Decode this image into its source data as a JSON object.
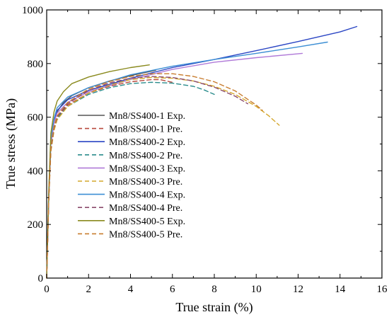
{
  "chart_data": {
    "type": "line",
    "xlabel": "True strain (%)",
    "ylabel": "True stress (MPa)",
    "xlim": [
      0,
      16
    ],
    "ylim": [
      0,
      1000
    ],
    "xticks": [
      0,
      2,
      4,
      6,
      8,
      10,
      12,
      14,
      16
    ],
    "yticks": [
      0,
      200,
      400,
      600,
      800,
      1000
    ],
    "grid": false,
    "legend_position": "center-left",
    "series": [
      {
        "name": "Mn8/SS400-1 Exp.",
        "color": "#555555",
        "style": "solid",
        "x": [
          0,
          0.1,
          0.2,
          0.35,
          0.5,
          0.8,
          1.2,
          2,
          3,
          4,
          5.2
        ],
        "y": [
          0,
          300,
          500,
          580,
          620,
          655,
          680,
          710,
          735,
          755,
          775
        ]
      },
      {
        "name": "Mn8/SS400-1 Pre.",
        "color": "#b84a3e",
        "style": "dashed",
        "x": [
          0,
          0.1,
          0.2,
          0.35,
          0.5,
          1,
          2,
          3,
          4,
          5,
          5.4,
          6
        ],
        "y": [
          0,
          300,
          480,
          560,
          600,
          645,
          690,
          715,
          732,
          740,
          740,
          730
        ]
      },
      {
        "name": "Mn8/SS400-2 Exp.",
        "color": "#2b46c4",
        "style": "solid",
        "x": [
          0,
          0.1,
          0.2,
          0.35,
          0.5,
          1,
          2,
          4,
          6,
          8,
          10,
          12,
          14,
          14.8
        ],
        "y": [
          0,
          320,
          520,
          590,
          625,
          665,
          700,
          745,
          785,
          815,
          848,
          882,
          918,
          938
        ]
      },
      {
        "name": "Mn8/SS400-2 Pre.",
        "color": "#2a8c8c",
        "style": "dashed",
        "x": [
          0,
          0.1,
          0.2,
          0.35,
          0.5,
          1,
          2,
          3,
          4,
          5,
          6,
          7,
          7.5,
          8
        ],
        "y": [
          0,
          300,
          480,
          555,
          595,
          640,
          685,
          710,
          725,
          730,
          727,
          715,
          702,
          685
        ]
      },
      {
        "name": "Mn8/SS400-3 Exp.",
        "color": "#b07ad8",
        "style": "solid",
        "x": [
          0,
          0.1,
          0.2,
          0.35,
          0.5,
          1,
          2,
          4,
          6,
          8,
          10,
          12.2
        ],
        "y": [
          0,
          310,
          500,
          580,
          615,
          655,
          695,
          740,
          778,
          805,
          822,
          838
        ]
      },
      {
        "name": "Mn8/SS400-3 Pre.",
        "color": "#d4a72c",
        "style": "dashed",
        "x": [
          0,
          0.1,
          0.2,
          0.35,
          0.5,
          1,
          2,
          3,
          4,
          5,
          6,
          7,
          8,
          9,
          10,
          10.6,
          11.1
        ],
        "y": [
          0,
          290,
          470,
          550,
          590,
          640,
          690,
          720,
          740,
          748,
          745,
          735,
          715,
          685,
          640,
          605,
          570
        ]
      },
      {
        "name": "Mn8/SS400-4 Exp.",
        "color": "#3d8fd4",
        "style": "solid",
        "x": [
          0,
          0.1,
          0.2,
          0.35,
          0.5,
          1,
          2,
          4,
          6,
          8,
          10,
          12,
          13.4
        ],
        "y": [
          0,
          320,
          520,
          595,
          635,
          675,
          710,
          758,
          790,
          815,
          838,
          862,
          880
        ]
      },
      {
        "name": "Mn8/SS400-4 Pre.",
        "color": "#8a4a6a",
        "style": "dashed",
        "x": [
          0,
          0.1,
          0.2,
          0.35,
          0.5,
          1,
          2,
          3,
          4,
          5,
          6,
          7,
          8,
          9,
          9.6
        ],
        "y": [
          0,
          295,
          480,
          560,
          600,
          650,
          700,
          728,
          745,
          752,
          748,
          735,
          712,
          678,
          650
        ]
      },
      {
        "name": "Mn8/SS400-5 Exp.",
        "color": "#8a8a1e",
        "style": "solid",
        "x": [
          0,
          0.1,
          0.2,
          0.35,
          0.5,
          0.8,
          1.2,
          2,
          3,
          4,
          4.9
        ],
        "y": [
          0,
          330,
          540,
          620,
          660,
          695,
          725,
          750,
          770,
          785,
          795
        ]
      },
      {
        "name": "Mn8/SS400-5 Pre.",
        "color": "#c87c2e",
        "style": "dashed",
        "x": [
          0,
          0.1,
          0.2,
          0.35,
          0.5,
          1,
          2,
          3,
          4,
          5,
          6,
          7,
          8,
          9,
          10,
          10.3
        ],
        "y": [
          0,
          300,
          490,
          565,
          605,
          655,
          705,
          733,
          752,
          762,
          762,
          752,
          732,
          698,
          645,
          625
        ]
      }
    ]
  }
}
